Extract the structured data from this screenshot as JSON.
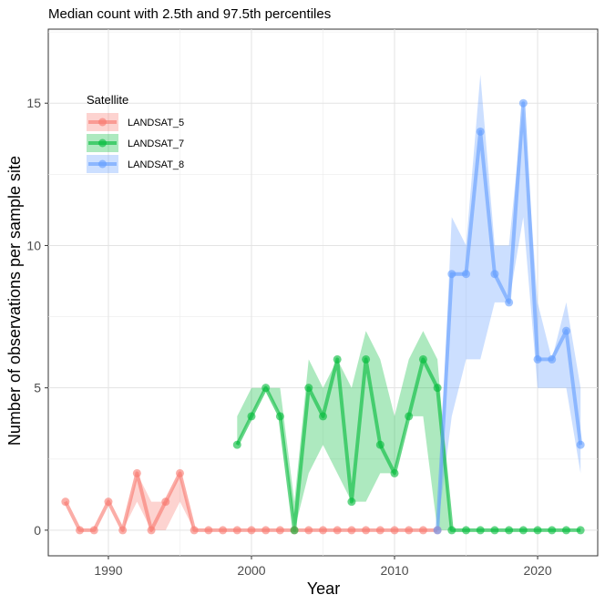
{
  "chart_data": {
    "type": "line",
    "title": "Median count with 2.5th and 97.5th percentiles",
    "xlabel": "Year",
    "ylabel": "Number of observations per sample site",
    "xlim": [
      1985.8,
      2024.2
    ],
    "ylim": [
      -0.9,
      17.6
    ],
    "xticks": [
      1990,
      2000,
      2010,
      2020
    ],
    "yticks": [
      0,
      5,
      10,
      15
    ],
    "grid": true,
    "legend": {
      "title": "Satellite",
      "position": "top-left"
    },
    "series": [
      {
        "name": "LANDSAT_5",
        "color": "#F8766D",
        "points": [
          [
            1987,
            1,
            1,
            1
          ],
          [
            1988,
            0,
            0,
            0
          ],
          [
            1989,
            0,
            0,
            0
          ],
          [
            1990,
            1,
            1,
            1
          ],
          [
            1991,
            0,
            0,
            0
          ],
          [
            1992,
            2,
            1,
            2
          ],
          [
            1993,
            0,
            0,
            1
          ],
          [
            1994,
            1,
            0,
            1
          ],
          [
            1995,
            2,
            1,
            2
          ],
          [
            1996,
            0,
            0,
            0
          ],
          [
            1997,
            0,
            0,
            0
          ],
          [
            1998,
            0,
            0,
            0
          ],
          [
            1999,
            0,
            0,
            0
          ],
          [
            2000,
            0,
            0,
            0
          ],
          [
            2001,
            0,
            0,
            0
          ],
          [
            2002,
            0,
            0,
            0
          ],
          [
            2003,
            0,
            0,
            0
          ],
          [
            2004,
            0,
            0,
            0
          ],
          [
            2005,
            0,
            0,
            0
          ],
          [
            2006,
            0,
            0,
            0
          ],
          [
            2007,
            0,
            0,
            0
          ],
          [
            2008,
            0,
            0,
            0
          ],
          [
            2009,
            0,
            0,
            0
          ],
          [
            2010,
            0,
            0,
            0
          ],
          [
            2011,
            0,
            0,
            0
          ],
          [
            2012,
            0,
            0,
            0
          ],
          [
            2013,
            0,
            0,
            0
          ]
        ]
      },
      {
        "name": "LANDSAT_7",
        "color": "#00BA38",
        "points": [
          [
            1999,
            3,
            3,
            4
          ],
          [
            2000,
            4,
            4,
            5
          ],
          [
            2001,
            5,
            5,
            5
          ],
          [
            2002,
            4,
            4,
            5
          ],
          [
            2003,
            0,
            0,
            1
          ],
          [
            2004,
            5,
            2,
            6
          ],
          [
            2005,
            4,
            3,
            5
          ],
          [
            2006,
            6,
            2,
            6
          ],
          [
            2007,
            1,
            1,
            5
          ],
          [
            2008,
            6,
            1,
            7
          ],
          [
            2009,
            3,
            2,
            6
          ],
          [
            2010,
            2,
            2,
            4
          ],
          [
            2011,
            4,
            4,
            6
          ],
          [
            2012,
            6,
            4,
            7
          ],
          [
            2013,
            5,
            0,
            6
          ],
          [
            2014,
            0,
            0,
            0
          ],
          [
            2015,
            0,
            0,
            0
          ],
          [
            2016,
            0,
            0,
            0
          ],
          [
            2017,
            0,
            0,
            0
          ],
          [
            2018,
            0,
            0,
            0
          ],
          [
            2019,
            0,
            0,
            0
          ],
          [
            2020,
            0,
            0,
            0
          ],
          [
            2021,
            0,
            0,
            0
          ],
          [
            2022,
            0,
            0,
            0
          ],
          [
            2023,
            0,
            0,
            0
          ]
        ]
      },
      {
        "name": "LANDSAT_8",
        "color": "#619CFF",
        "points": [
          [
            2013,
            0,
            0,
            0
          ],
          [
            2014,
            9,
            4,
            11
          ],
          [
            2015,
            9,
            6,
            10
          ],
          [
            2016,
            14,
            6,
            16
          ],
          [
            2017,
            9,
            8,
            10
          ],
          [
            2018,
            8,
            8,
            10
          ],
          [
            2019,
            15,
            11,
            15
          ],
          [
            2020,
            6,
            5,
            8
          ],
          [
            2021,
            6,
            5,
            6
          ],
          [
            2022,
            7,
            5,
            8
          ],
          [
            2023,
            3,
            2,
            5
          ]
        ]
      }
    ]
  }
}
